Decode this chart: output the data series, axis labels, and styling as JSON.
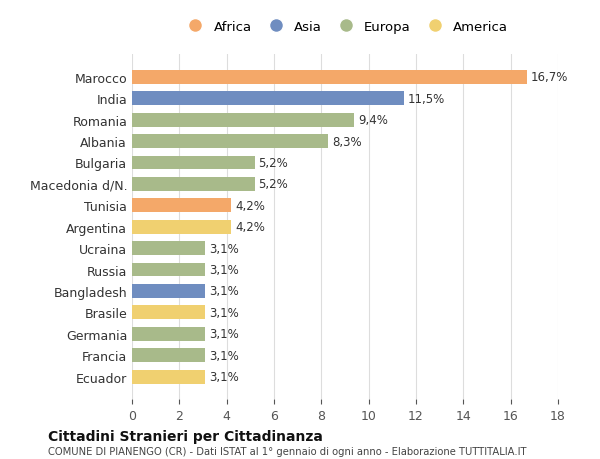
{
  "categories": [
    "Marocco",
    "India",
    "Romania",
    "Albania",
    "Bulgaria",
    "Macedonia d/N.",
    "Tunisia",
    "Argentina",
    "Ucraina",
    "Russia",
    "Bangladesh",
    "Brasile",
    "Germania",
    "Francia",
    "Ecuador"
  ],
  "values": [
    16.7,
    11.5,
    9.4,
    8.3,
    5.2,
    5.2,
    4.2,
    4.2,
    3.1,
    3.1,
    3.1,
    3.1,
    3.1,
    3.1,
    3.1
  ],
  "labels": [
    "16,7%",
    "11,5%",
    "9,4%",
    "8,3%",
    "5,2%",
    "5,2%",
    "4,2%",
    "4,2%",
    "3,1%",
    "3,1%",
    "3,1%",
    "3,1%",
    "3,1%",
    "3,1%",
    "3,1%"
  ],
  "continent": [
    "Africa",
    "Asia",
    "Europa",
    "Europa",
    "Europa",
    "Europa",
    "Africa",
    "America",
    "Europa",
    "Europa",
    "Asia",
    "America",
    "Europa",
    "Europa",
    "America"
  ],
  "colors": {
    "Africa": "#F4A869",
    "Asia": "#6F8DC0",
    "Europa": "#A8BA8A",
    "America": "#F0D070"
  },
  "legend_order": [
    "Africa",
    "Asia",
    "Europa",
    "America"
  ],
  "title": "Cittadini Stranieri per Cittadinanza",
  "subtitle": "COMUNE DI PIANENGO (CR) - Dati ISTAT al 1° gennaio di ogni anno - Elaborazione TUTTITALIA.IT",
  "xlim": [
    0,
    18
  ],
  "xticks": [
    0,
    2,
    4,
    6,
    8,
    10,
    12,
    14,
    16,
    18
  ],
  "background_color": "#ffffff",
  "grid_color": "#dddddd"
}
